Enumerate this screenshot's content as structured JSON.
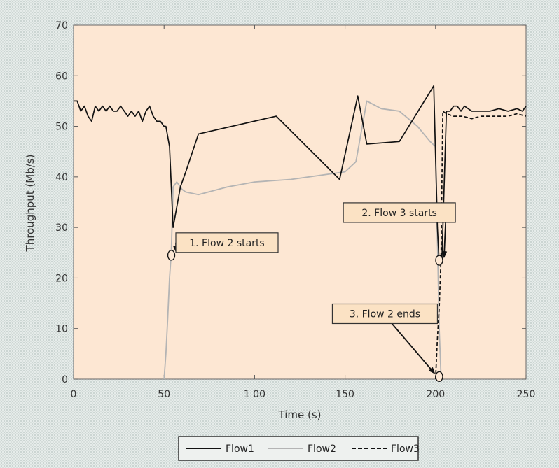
{
  "chart_data": {
    "type": "line",
    "title": "",
    "xlabel": "Time (s)",
    "ylabel": "Throughput (Mb/s)",
    "xlim": [
      0,
      250
    ],
    "ylim": [
      0,
      70
    ],
    "xticks": [
      0,
      50,
      100,
      150,
      200,
      250
    ],
    "xtick_labels": [
      "0",
      "50",
      "1 00",
      "150",
      "200",
      "250"
    ],
    "yticks": [
      0,
      10,
      20,
      30,
      40,
      50,
      60,
      70
    ],
    "grid": false,
    "legend_position": "bottom",
    "colors": {
      "plot_bg": "#fde7d3",
      "flow1": "#111111",
      "flow2": "#b4b4b4",
      "flow3": "#111111",
      "annot_bg": "#fbe2c4"
    },
    "series": [
      {
        "name": "Flow1",
        "style": "solid",
        "x": [
          0,
          2,
          4,
          6,
          8,
          10,
          12,
          14,
          16,
          18,
          20,
          22,
          24,
          26,
          28,
          30,
          32,
          34,
          36,
          38,
          40,
          42,
          44,
          46,
          48,
          50,
          51,
          53,
          55,
          57,
          59,
          62,
          69,
          112,
          147,
          157,
          162,
          180,
          199,
          201,
          202,
          203.5,
          206,
          208,
          210,
          212,
          214,
          216,
          220,
          225,
          230,
          235,
          240,
          245,
          248,
          250
        ],
        "y": [
          55,
          55,
          53,
          54,
          52,
          51,
          54,
          53,
          54,
          53,
          54,
          53,
          53,
          54,
          53,
          52,
          53,
          52,
          53,
          51,
          53,
          54,
          52,
          51,
          51,
          50,
          50,
          46,
          30,
          34,
          38,
          41,
          48.5,
          52,
          39.5,
          56,
          46.5,
          47,
          58,
          30,
          23,
          23.5,
          53,
          53,
          54,
          54,
          53,
          54,
          53,
          53,
          53,
          53.5,
          53,
          53.5,
          53,
          54
        ]
      },
      {
        "name": "Flow2",
        "style": "solid",
        "x": [
          50,
          51,
          52,
          53,
          54,
          55,
          57,
          60,
          62,
          69,
          85,
          100,
          120,
          150,
          156,
          162,
          170,
          180,
          190,
          197,
          200,
          202,
          203
        ],
        "y": [
          0,
          5,
          12,
          20,
          25,
          38,
          39,
          37.5,
          37,
          36.5,
          38,
          39,
          39.5,
          41,
          43,
          55,
          53.5,
          53,
          50,
          47,
          46,
          10,
          0.5
        ]
      },
      {
        "name": "Flow3",
        "style": "dashed",
        "x": [
          200,
          201,
          202,
          203,
          204,
          206,
          210,
          215,
          220,
          225,
          230,
          235,
          240,
          245,
          250
        ],
        "y": [
          0,
          8,
          14,
          24,
          53,
          52.5,
          52,
          52,
          51.5,
          52,
          52,
          52,
          52,
          52.5,
          52
        ]
      }
    ],
    "annotations": [
      {
        "text": "1. Flow 2 starts",
        "point": [
          54,
          24.5
        ],
        "box_anchor": [
          56.5,
          27
        ]
      },
      {
        "text": "2. Flow 3 starts",
        "point": [
          202,
          23.5
        ],
        "box_anchor": [
          180,
          31
        ]
      },
      {
        "text": "3. Flow 2 ends",
        "point": [
          202,
          0.5
        ],
        "box_anchor": [
          172,
          11
        ]
      }
    ]
  }
}
